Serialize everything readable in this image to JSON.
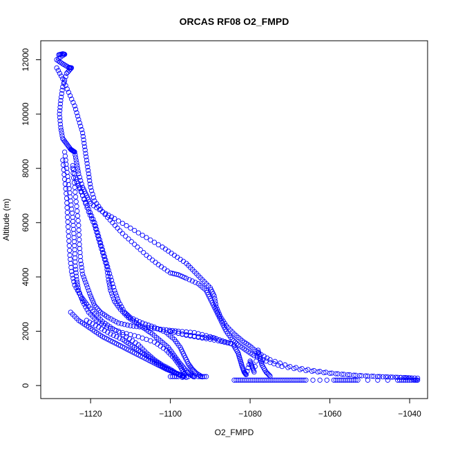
{
  "chart_data": {
    "type": "scatter",
    "title": "ORCAS RF08 O2_FMPD",
    "xlabel": "O2_FMPD",
    "ylabel": "Altitude (m)",
    "xlim": [
      -1132.5,
      -1035.5
    ],
    "ylim": [
      -480,
      12700
    ],
    "xticks": [
      -1120,
      -1100,
      -1080,
      -1060,
      -1040
    ],
    "yticks": [
      0,
      2000,
      4000,
      6000,
      8000,
      10000,
      12000
    ],
    "grid": false,
    "marker": "open-circle",
    "color": "#0000ff",
    "series": [
      {
        "points": [
          [
            -1128,
            12180
          ],
          [
            -1127,
            12220
          ],
          [
            -1126.5,
            12200
          ],
          [
            -1128.5,
            12000
          ],
          [
            -1127,
            11850
          ],
          [
            -1125.5,
            11720
          ],
          [
            -1124.8,
            11700
          ],
          [
            -1126,
            11500
          ],
          [
            -1127,
            11000
          ],
          [
            -1127.5,
            10500
          ],
          [
            -1127.8,
            10000
          ],
          [
            -1127.5,
            9500
          ],
          [
            -1127,
            9100
          ],
          [
            -1126,
            8900
          ],
          [
            -1125,
            8700
          ],
          [
            -1124.5,
            8650
          ],
          [
            -1124,
            8600
          ],
          [
            -1123.5,
            8200
          ],
          [
            -1123,
            7800
          ],
          [
            -1122,
            7300
          ],
          [
            -1121,
            7000
          ],
          [
            -1120,
            6700
          ],
          [
            -1117,
            6400
          ],
          [
            -1114,
            6150
          ],
          [
            -1110,
            5800
          ],
          [
            -1106,
            5450
          ],
          [
            -1102,
            5100
          ],
          [
            -1099,
            4800
          ],
          [
            -1096,
            4500
          ],
          [
            -1094,
            4200
          ],
          [
            -1092,
            3900
          ],
          [
            -1090,
            3600
          ],
          [
            -1089,
            3300
          ],
          [
            -1088.5,
            2900
          ],
          [
            -1087.5,
            2550
          ],
          [
            -1086,
            2200
          ],
          [
            -1084,
            1900
          ],
          [
            -1082,
            1650
          ],
          [
            -1080,
            1450
          ],
          [
            -1078,
            1200
          ],
          [
            -1075,
            950
          ],
          [
            -1070,
            700
          ],
          [
            -1064,
            550
          ],
          [
            -1058,
            430
          ],
          [
            -1052,
            360
          ],
          [
            -1046,
            320
          ],
          [
            -1041,
            290
          ],
          [
            -1038,
            270
          ]
        ]
      },
      {
        "points": [
          [
            -1128.5,
            11700
          ],
          [
            -1127,
            11300
          ],
          [
            -1125.5,
            10800
          ],
          [
            -1124,
            10300
          ],
          [
            -1123,
            9800
          ],
          [
            -1122,
            9300
          ],
          [
            -1121.5,
            8800
          ],
          [
            -1121,
            8300
          ],
          [
            -1120.5,
            7800
          ],
          [
            -1120,
            7300
          ],
          [
            -1119,
            6800
          ],
          [
            -1117,
            6400
          ],
          [
            -1114.5,
            6000
          ],
          [
            -1112,
            5600
          ],
          [
            -1109,
            5200
          ],
          [
            -1106,
            4800
          ],
          [
            -1103,
            4450
          ],
          [
            -1100,
            4150
          ],
          [
            -1098,
            4080
          ],
          [
            -1096,
            3950
          ],
          [
            -1093,
            3750
          ],
          [
            -1091,
            3500
          ],
          [
            -1090,
            3200
          ],
          [
            -1089,
            2900
          ],
          [
            -1088,
            2600
          ],
          [
            -1087,
            2300
          ],
          [
            -1086,
            2000
          ],
          [
            -1084.5,
            1700
          ],
          [
            -1083,
            1500
          ],
          [
            -1081,
            1300
          ],
          [
            -1079,
            1100
          ],
          [
            -1076,
            900
          ],
          [
            -1072,
            700
          ],
          [
            -1066,
            550
          ],
          [
            -1060,
            450
          ],
          [
            -1054,
            380
          ],
          [
            -1048,
            330
          ],
          [
            -1043,
            300
          ],
          [
            -1040,
            280
          ]
        ]
      },
      {
        "points": [
          [
            -1126.5,
            8600
          ],
          [
            -1126,
            8000
          ],
          [
            -1125.5,
            7400
          ],
          [
            -1125,
            6800
          ],
          [
            -1124.5,
            6200
          ],
          [
            -1124.2,
            5600
          ],
          [
            -1124,
            5000
          ],
          [
            -1123.8,
            4400
          ],
          [
            -1123.5,
            3900
          ],
          [
            -1123,
            3500
          ],
          [
            -1122,
            3100
          ],
          [
            -1120.5,
            2700
          ],
          [
            -1118.5,
            2400
          ],
          [
            -1116,
            2150
          ],
          [
            -1112,
            1950
          ],
          [
            -1108,
            1800
          ],
          [
            -1104,
            1600
          ],
          [
            -1101,
            1300
          ],
          [
            -1099,
            1000
          ],
          [
            -1097.5,
            700
          ],
          [
            -1096.5,
            450
          ],
          [
            -1097,
            300
          ]
        ]
      },
      {
        "points": [
          [
            -1127,
            8300
          ],
          [
            -1126.5,
            7600
          ],
          [
            -1126,
            6900
          ],
          [
            -1125.8,
            6200
          ],
          [
            -1125.5,
            5500
          ],
          [
            -1125.2,
            4800
          ],
          [
            -1124.8,
            4200
          ],
          [
            -1124,
            3700
          ],
          [
            -1122.5,
            3300
          ],
          [
            -1121,
            3000
          ],
          [
            -1119,
            2650
          ],
          [
            -1117,
            2350
          ],
          [
            -1114.5,
            2100
          ],
          [
            -1111,
            1800
          ],
          [
            -1108,
            1500
          ],
          [
            -1106,
            1200
          ],
          [
            -1104,
            950
          ],
          [
            -1102,
            750
          ],
          [
            -1100,
            600
          ],
          [
            -1098,
            400
          ],
          [
            -1096,
            300
          ]
        ]
      },
      {
        "points": [
          [
            -1124.5,
            8100
          ],
          [
            -1123.5,
            7500
          ],
          [
            -1122,
            7000
          ],
          [
            -1120.5,
            6500
          ],
          [
            -1119,
            6000
          ],
          [
            -1118,
            5500
          ],
          [
            -1117,
            5000
          ],
          [
            -1116,
            4500
          ],
          [
            -1115,
            4000
          ],
          [
            -1114,
            3500
          ],
          [
            -1113,
            3100
          ],
          [
            -1111.5,
            2700
          ],
          [
            -1110,
            2500
          ],
          [
            -1107,
            2300
          ],
          [
            -1104,
            2150
          ],
          [
            -1101,
            1950
          ],
          [
            -1099,
            1700
          ],
          [
            -1097.5,
            1400
          ],
          [
            -1096.5,
            1100
          ],
          [
            -1095.5,
            800
          ],
          [
            -1094.5,
            600
          ],
          [
            -1093.5,
            450
          ],
          [
            -1092,
            320
          ]
        ]
      },
      {
        "points": [
          [
            -1123.5,
            7600
          ],
          [
            -1122,
            7000
          ],
          [
            -1120.5,
            6400
          ],
          [
            -1119,
            5900
          ],
          [
            -1118,
            5400
          ],
          [
            -1117,
            4900
          ],
          [
            -1116,
            4400
          ],
          [
            -1115.5,
            3900
          ],
          [
            -1115,
            3500
          ],
          [
            -1114,
            3100
          ],
          [
            -1112.5,
            2800
          ],
          [
            -1110.5,
            2500
          ],
          [
            -1108.5,
            2300
          ],
          [
            -1106.5,
            2100
          ],
          [
            -1104.5,
            1900
          ],
          [
            -1102.5,
            1650
          ],
          [
            -1100.5,
            1400
          ],
          [
            -1099,
            1100
          ],
          [
            -1097.5,
            800
          ],
          [
            -1096,
            550
          ],
          [
            -1095,
            400
          ],
          [
            -1094,
            320
          ]
        ]
      },
      {
        "points": [
          [
            -1124.5,
            8000
          ],
          [
            -1124,
            7300
          ],
          [
            -1123.5,
            6600
          ],
          [
            -1123,
            5900
          ],
          [
            -1122.8,
            5200
          ],
          [
            -1122.5,
            4600
          ],
          [
            -1122,
            4100
          ],
          [
            -1121,
            3700
          ],
          [
            -1120,
            3300
          ],
          [
            -1119,
            2950
          ],
          [
            -1117.5,
            2700
          ],
          [
            -1115.5,
            2500
          ],
          [
            -1113,
            2300
          ],
          [
            -1110,
            2200
          ],
          [
            -1107,
            2150
          ],
          [
            -1104,
            2100
          ],
          [
            -1101,
            2050
          ],
          [
            -1098,
            2000
          ],
          [
            -1094,
            1950
          ],
          [
            -1090,
            1800
          ],
          [
            -1087,
            1650
          ],
          [
            -1084,
            1500
          ]
        ]
      },
      {
        "points": [
          [
            -1100,
            2000
          ],
          [
            -1096,
            1850
          ],
          [
            -1092,
            1750
          ],
          [
            -1088,
            1650
          ],
          [
            -1085,
            1550
          ]
        ]
      },
      {
        "points": [
          [
            -1125,
            2700
          ],
          [
            -1123,
            2400
          ],
          [
            -1121,
            2200
          ],
          [
            -1119,
            2000
          ],
          [
            -1117,
            1800
          ],
          [
            -1115,
            1650
          ],
          [
            -1113,
            1500
          ],
          [
            -1111,
            1350
          ],
          [
            -1109,
            1200
          ],
          [
            -1107,
            1050
          ],
          [
            -1105,
            900
          ],
          [
            -1103,
            750
          ],
          [
            -1101,
            600
          ],
          [
            -1099,
            480
          ],
          [
            -1097.5,
            400
          ]
        ]
      },
      {
        "points": [
          [
            -1121,
            2400
          ],
          [
            -1118,
            2150
          ],
          [
            -1115,
            1900
          ],
          [
            -1112,
            1700
          ],
          [
            -1110,
            1500
          ],
          [
            -1108,
            1300
          ],
          [
            -1106,
            1100
          ],
          [
            -1104,
            900
          ],
          [
            -1102,
            700
          ],
          [
            -1100,
            550
          ],
          [
            -1098.5,
            450
          ]
        ]
      },
      {
        "points": [
          [
            -1084,
            1450
          ],
          [
            -1083,
            1200
          ],
          [
            -1082.5,
            950
          ],
          [
            -1082,
            700
          ],
          [
            -1081.5,
            500
          ],
          [
            -1081,
            400
          ],
          [
            -1080,
            900
          ],
          [
            -1079.5,
            700
          ],
          [
            -1079,
            500
          ],
          [
            -1078,
            1300
          ],
          [
            -1077.5,
            1000
          ],
          [
            -1077,
            750
          ],
          [
            -1076,
            500
          ],
          [
            -1075,
            350
          ]
        ]
      },
      {
        "points": [
          [
            -1084,
            200
          ],
          [
            -1082,
            200
          ],
          [
            -1080,
            200
          ],
          [
            -1078,
            200
          ],
          [
            -1076,
            200
          ],
          [
            -1074,
            200
          ],
          [
            -1072,
            200
          ],
          [
            -1070,
            200
          ],
          [
            -1068,
            200
          ],
          [
            -1066,
            200
          ],
          [
            -1059,
            200
          ],
          [
            -1057,
            200
          ],
          [
            -1055,
            200
          ],
          [
            -1053,
            200
          ],
          [
            -1043,
            200
          ],
          [
            -1041,
            200
          ],
          [
            -1039,
            200
          ],
          [
            -1038,
            200
          ]
        ]
      },
      {
        "points": [
          [
            -1091,
            330
          ],
          [
            -1093,
            330
          ],
          [
            -1098,
            330
          ],
          [
            -1100,
            330
          ]
        ]
      },
      {
        "points": [
          [
            -1089,
            1750
          ],
          [
            -1092,
            1780
          ],
          [
            -1096,
            1870
          ],
          [
            -1100,
            1990
          ]
        ]
      }
    ]
  }
}
